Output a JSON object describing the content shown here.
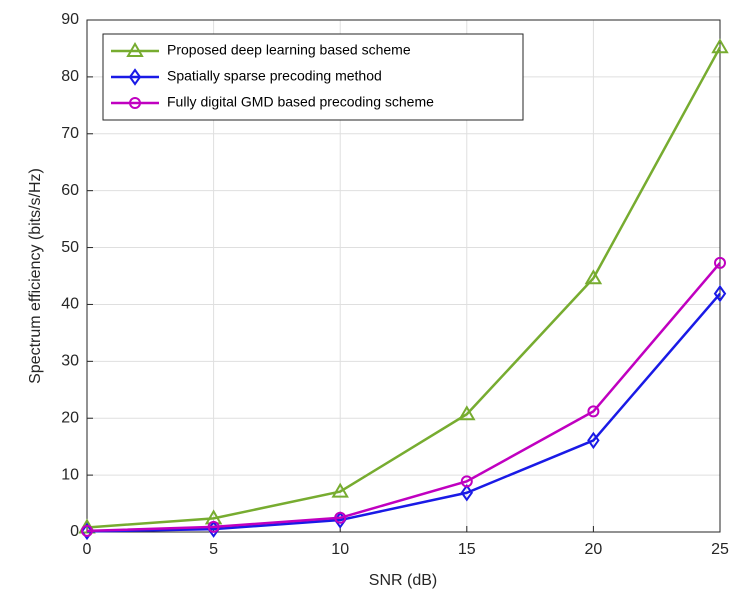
{
  "chart_data": {
    "type": "line",
    "xlabel": "SNR (dB)",
    "ylabel": "Spectrum efficiency (bits/s/Hz)",
    "x": [
      0,
      5,
      10,
      15,
      20,
      25
    ],
    "series": [
      {
        "name": "Proposed deep learning based scheme",
        "color": "#77ac30",
        "marker": "triangle",
        "values": [
          0.8,
          2.4,
          7.1,
          20.7,
          44.6,
          85.2
        ]
      },
      {
        "name": "Spatially sparse precoding method",
        "color": "#1a1ae6",
        "marker": "diamond",
        "values": [
          0.1,
          0.5,
          2.1,
          6.9,
          16.1,
          41.9
        ]
      },
      {
        "name": "Fully digital GMD based precoding scheme",
        "color": "#c000c0",
        "marker": "circle",
        "values": [
          0.2,
          0.9,
          2.5,
          8.9,
          21.2,
          47.3
        ]
      }
    ],
    "xlim": [
      0,
      25
    ],
    "xticks": [
      0,
      5,
      10,
      15,
      20,
      25
    ],
    "ylim": [
      0,
      90
    ],
    "yticks": [
      0,
      10,
      20,
      30,
      40,
      50,
      60,
      70,
      80,
      90
    ],
    "grid": true,
    "legend": "upper left"
  }
}
